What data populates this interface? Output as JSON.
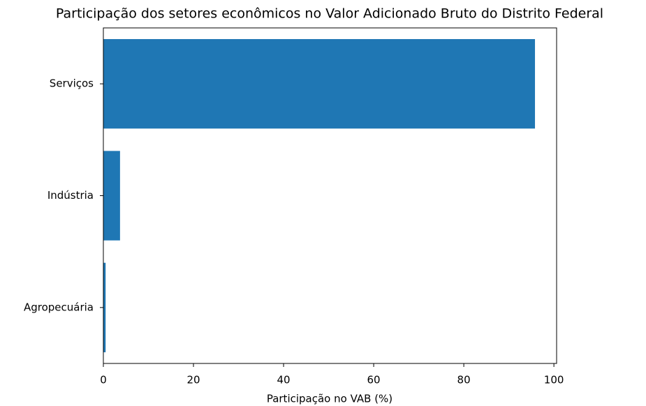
{
  "chart_data": {
    "type": "bar",
    "orientation": "horizontal",
    "title": "Participação dos setores econômicos no Valor Adicionado Bruto do Distrito Federal",
    "xlabel": "Participação no VAB (%)",
    "categories": [
      "Agropecuária",
      "Indústria",
      "Serviços"
    ],
    "values": [
      0.5,
      3.7,
      95.8
    ],
    "color": "#1f77b4",
    "xlim": [
      0,
      100.6
    ],
    "xticks": [
      0,
      20,
      40,
      60,
      80,
      100
    ],
    "grid": false
  }
}
